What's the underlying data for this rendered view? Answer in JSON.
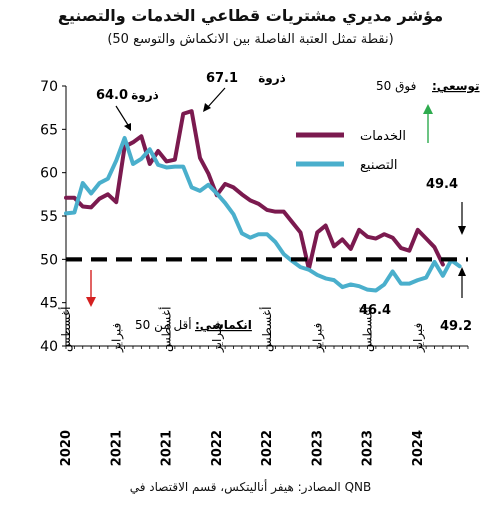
{
  "header": {
    "title": "مؤشر مديري مشتريات قطاعي الخدمات والتصنيع",
    "subtitle": "(50 نقطة تمثل العتبة الفاصلة بين الانكماش والتوسع)"
  },
  "source": "المصادر: هيفر أناليتكس، قسم الاقتصاد في QNB",
  "colors": {
    "services": "#7b1a4f",
    "manufacturing": "#4aafcc",
    "threshold": "#000000",
    "up_arrow": "#2eab4e",
    "down_arrow": "#d42020"
  },
  "chart_data": {
    "type": "line",
    "ylim": [
      40,
      70
    ],
    "y_ticks": [
      40,
      45,
      50,
      55,
      60,
      65,
      70
    ],
    "x_range": [
      0,
      48
    ],
    "x_ticks": [
      {
        "x": 0,
        "label": "أغسطس"
      },
      {
        "x": 6,
        "label": "فبراير"
      },
      {
        "x": 12,
        "label": "أغسطس"
      },
      {
        "x": 18,
        "label": "فبراير"
      },
      {
        "x": 24,
        "label": "أغسطس"
      },
      {
        "x": 30,
        "label": "فبراير"
      },
      {
        "x": 36,
        "label": "أغسطس"
      },
      {
        "x": 42,
        "label": "فبراير"
      }
    ],
    "year_labels": [
      {
        "x": 0,
        "label": "2020"
      },
      {
        "x": 6,
        "label": "2021"
      },
      {
        "x": 12,
        "label": "2021"
      },
      {
        "x": 18,
        "label": "2022"
      },
      {
        "x": 24,
        "label": "2022"
      },
      {
        "x": 30,
        "label": "2023"
      },
      {
        "x": 36,
        "label": "2023"
      },
      {
        "x": 42,
        "label": "2024"
      }
    ],
    "threshold": 50,
    "series": [
      {
        "name": "الخدمات",
        "color": "#7b1a4f",
        "values": [
          57.1,
          57.1,
          56.1,
          56.0,
          57.0,
          57.5,
          56.6,
          63.0,
          63.5,
          64.2,
          61.0,
          62.5,
          61.3,
          61.5,
          66.8,
          67.1,
          61.7,
          59.9,
          57.4,
          58.7,
          58.3,
          57.5,
          56.8,
          56.4,
          55.7,
          55.5,
          55.5,
          54.3,
          53.1,
          48.9,
          53.1,
          53.9,
          51.5,
          52.3,
          51.2,
          53.4,
          52.6,
          52.4,
          52.9,
          52.5,
          51.3,
          51.0,
          53.4,
          52.4,
          51.4,
          49.4
        ]
      },
      {
        "name": "التصنيع",
        "color": "#4aafcc",
        "values": [
          55.3,
          55.4,
          58.8,
          57.6,
          58.8,
          59.3,
          61.4,
          64.0,
          61.0,
          61.6,
          62.7,
          60.9,
          60.6,
          60.7,
          60.7,
          58.3,
          57.9,
          58.6,
          57.6,
          56.5,
          55.2,
          53.0,
          52.5,
          52.9,
          52.9,
          52.0,
          50.6,
          49.8,
          49.1,
          48.8,
          48.2,
          47.8,
          47.6,
          46.8,
          47.1,
          46.9,
          46.5,
          46.4,
          47.1,
          48.6,
          47.2,
          47.2,
          47.6,
          47.9,
          49.7,
          48.1,
          49.9,
          49.2
        ]
      }
    ],
    "legend": {
      "placement": "top-right",
      "items": [
        {
          "label": "الخدمات",
          "color": "#7b1a4f"
        },
        {
          "label": "التصنيع",
          "color": "#4aafcc"
        }
      ]
    },
    "annotations": {
      "peak_services": {
        "label": "ذروة",
        "value": "67.1",
        "x": 15,
        "y": 67.1
      },
      "peak_manufacturing": {
        "label": "ذروة",
        "value": "64.0",
        "x": 7,
        "y": 64.0
      },
      "last_services": {
        "value": "49.4",
        "x": 45,
        "y": 49.4
      },
      "last_manufacturing": {
        "value": "49.2",
        "x": 47,
        "y": 49.2
      },
      "min_manufacturing": {
        "value": "46.4",
        "x": 37,
        "y": 46.4
      },
      "expansion": {
        "label": "توسعي:",
        "text": "فوق 50"
      },
      "contraction": {
        "label": "انكماشي:",
        "text": "أقل من 50"
      }
    }
  }
}
